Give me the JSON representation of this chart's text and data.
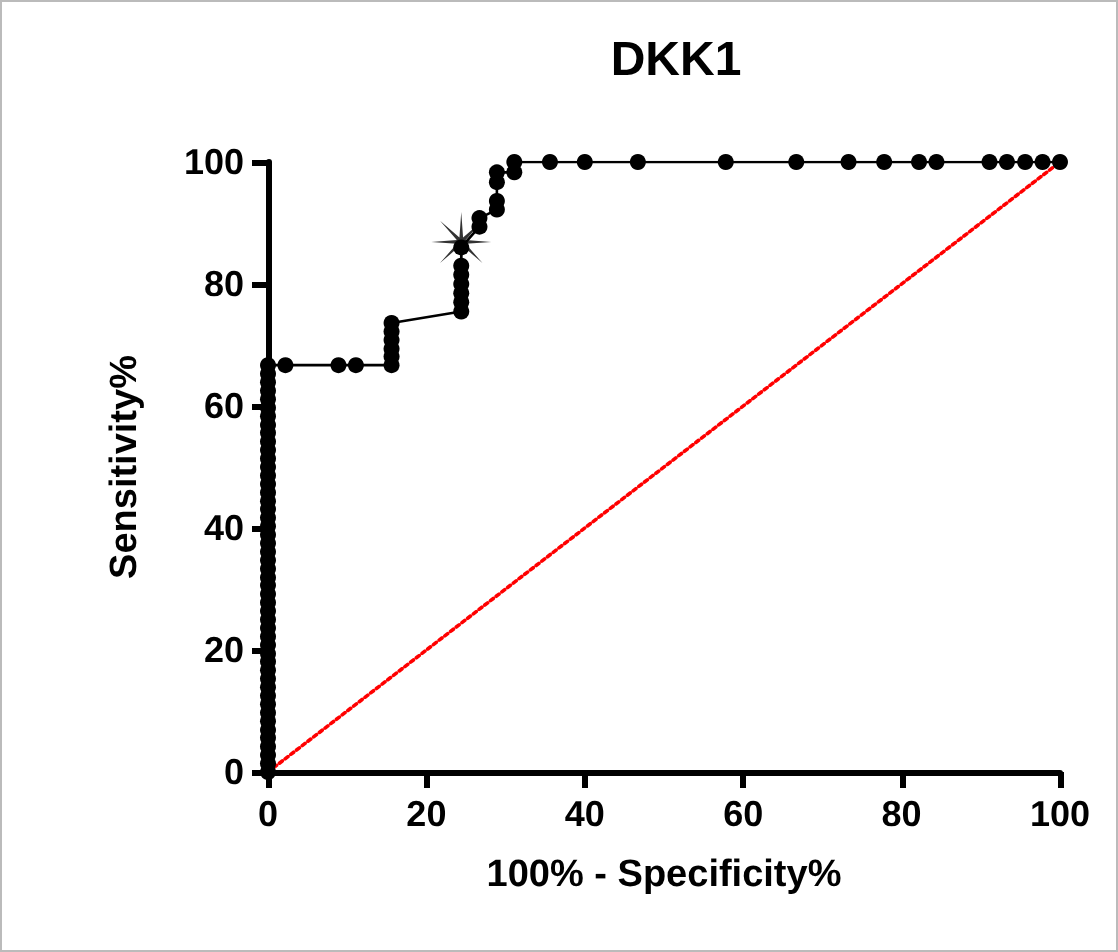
{
  "chart_data": {
    "type": "line",
    "title": "DKK1",
    "xlabel": "100% - Specificity%",
    "ylabel": "Sensitivity%",
    "xlim": [
      0,
      100
    ],
    "xticks": [
      0,
      20,
      40,
      60,
      80,
      100
    ],
    "ylim": [
      0,
      100
    ],
    "yticks": [
      0,
      20,
      40,
      60,
      80,
      100
    ],
    "series": [
      {
        "color": "#000000",
        "marker": "circle",
        "line_style": "solid",
        "x": [
          0,
          0,
          0,
          0,
          0,
          0,
          0,
          0,
          0,
          0,
          0,
          0,
          0,
          0,
          0,
          0,
          0,
          0,
          0,
          0,
          0,
          0,
          0,
          0,
          0,
          0,
          0,
          0,
          0,
          0,
          0,
          0,
          0,
          0,
          0,
          0,
          0,
          0,
          0,
          0,
          0,
          0,
          0,
          0,
          0,
          0,
          0,
          0,
          0,
          2.2,
          8.9,
          11.1,
          15.6,
          15.6,
          15.6,
          15.6,
          15.6,
          15.6,
          24.4,
          24.4,
          24.4,
          24.4,
          24.4,
          24.4,
          24.4,
          26.7,
          26.7,
          28.9,
          28.9,
          28.9,
          28.9,
          31.1,
          31.1,
          35.6,
          40,
          46.7,
          57.8,
          66.7,
          73.3,
          77.8,
          82.2,
          84.4,
          91.1,
          93.3,
          95.6,
          97.8,
          100
        ],
        "values": [
          0,
          1.4,
          2.8,
          4.2,
          5.6,
          6.9,
          8.3,
          9.7,
          11.1,
          12.5,
          13.9,
          15.3,
          16.7,
          18.1,
          19.4,
          20.8,
          22.2,
          23.6,
          25,
          26.4,
          27.8,
          29.2,
          30.6,
          31.9,
          33.3,
          34.7,
          36.1,
          37.5,
          38.9,
          40.3,
          41.7,
          43.1,
          44.4,
          45.8,
          47.2,
          48.6,
          50,
          51.4,
          52.8,
          54.2,
          55.6,
          56.9,
          58.3,
          59.7,
          61.1,
          62.5,
          63.9,
          65.3,
          66.7,
          66.7,
          66.7,
          66.7,
          66.7,
          68.1,
          69.4,
          70.8,
          72.2,
          73.6,
          75.5,
          77,
          78.5,
          80,
          81.5,
          83,
          86,
          89.4,
          90.8,
          92.2,
          93.6,
          96.7,
          98.3,
          98.3,
          100,
          100,
          100,
          100,
          100,
          100,
          100,
          100,
          100,
          100,
          100,
          100,
          100,
          100,
          100
        ]
      },
      {
        "type": "scatter",
        "color": "#000000",
        "marker": "star",
        "x": [
          24.4
        ],
        "values": [
          86.9
        ]
      },
      {
        "color": "#ff0000",
        "marker": "none",
        "line_style": "dotted",
        "x": [
          0,
          100
        ],
        "values": [
          0,
          100
        ]
      }
    ]
  }
}
